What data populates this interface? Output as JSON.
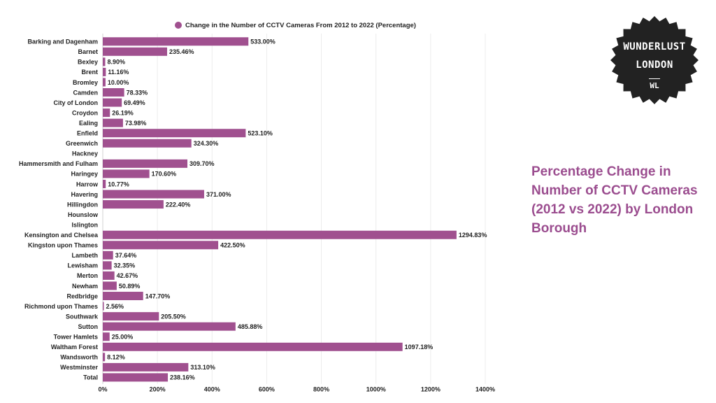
{
  "chart_data": {
    "type": "bar",
    "orientation": "horizontal",
    "legend": {
      "label": "Change in the Number of CCTV Cameras From 2012 to 2022 (Percentage)",
      "placement": "top"
    },
    "categories": [
      "Barking and Dagenham",
      "Barnet",
      "Bexley",
      "Brent",
      "Bromley",
      "Camden",
      "City of London",
      "Croydon",
      "Ealing",
      "Enfield",
      "Greenwich",
      "Hackney",
      "Hammersmith and Fulham",
      "Haringey",
      "Harrow",
      "Havering",
      "Hillingdon",
      "Hounslow",
      "Islington",
      "Kensington and Chelsea",
      "Kingston upon Thames",
      "Lambeth",
      "Lewisham",
      "Merton",
      "Newham",
      "Redbridge",
      "Richmond upon Thames",
      "Southwark",
      "Sutton",
      "Tower Hamlets",
      "Waltham Forest",
      "Wandsworth",
      "Westminster",
      "Total"
    ],
    "series": [
      {
        "name": "Change in the Number of CCTV Cameras From 2012 to 2022 (Percentage)",
        "values": [
          533.0,
          235.46,
          8.9,
          11.16,
          10.0,
          78.33,
          69.49,
          26.19,
          73.98,
          523.1,
          324.3,
          null,
          309.7,
          170.6,
          10.77,
          371.0,
          222.4,
          null,
          null,
          1294.83,
          422.5,
          37.64,
          32.35,
          42.67,
          50.89,
          147.7,
          2.56,
          205.5,
          485.88,
          25.0,
          1097.18,
          8.12,
          313.1,
          238.16
        ],
        "labels": [
          "533.00%",
          "235.46%",
          "8.90%",
          "11.16%",
          "10.00%",
          "78.33%",
          "69.49%",
          "26.19%",
          "73.98%",
          "523.10%",
          "324.30%",
          "",
          "309.70%",
          "170.60%",
          "10.77%",
          "371.00%",
          "222.40%",
          "",
          "",
          "1294.83%",
          "422.50%",
          "37.64%",
          "32.35%",
          "42.67%",
          "50.89%",
          "147.70%",
          "2.56%",
          "205.50%",
          "485.88%",
          "25.00%",
          "1097.18%",
          "8.12%",
          "313.10%",
          "238.16%"
        ]
      }
    ],
    "x_ticks": [
      "0%",
      "200%",
      "400%",
      "600%",
      "800%",
      "1000%",
      "1200%",
      "1400%"
    ],
    "xlim": [
      0,
      1400
    ],
    "grid": true,
    "bar_color": "#a0508f"
  },
  "side_title": "Percentage Change in Number of CCTV Cameras (2012 vs 2022) by London Borough",
  "logo": {
    "line1": "WUNDERLUST",
    "line2": "LONDON",
    "line3": "WL"
  }
}
